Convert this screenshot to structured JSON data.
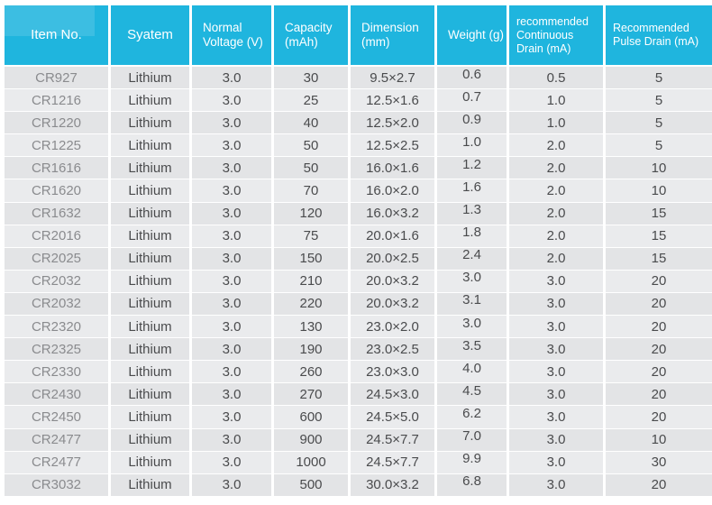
{
  "colors": {
    "header_bg": "#1fb5de",
    "header_text": "#ffffff",
    "row_odd": "#e3e4e6",
    "row_even": "#eaebed",
    "body_text": "#4a4b4d",
    "item_no_text": "#8a8b8e",
    "page_bg": "#ffffff"
  },
  "chart_data": {
    "type": "table",
    "title": "Lithium coin cell battery specifications",
    "columns": [
      {
        "id": "item_no",
        "label": "Item No."
      },
      {
        "id": "system",
        "label": "Syatem"
      },
      {
        "id": "normal_voltage_v",
        "label": "Normal Voltage (V)"
      },
      {
        "id": "capacity_mah",
        "label": "Capacity (mAh)"
      },
      {
        "id": "dimension_mm",
        "label": "Dimension (mm)"
      },
      {
        "id": "weight_g",
        "label": "Weight (g)"
      },
      {
        "id": "recommended_continuous_drain_ma",
        "label": "recommended Continuous Drain (mA)"
      },
      {
        "id": "recommended_pulse_drain_ma",
        "label": "Recommended Pulse Drain (mA)"
      }
    ],
    "rows": [
      [
        "CR927",
        "Lithium",
        "3.0",
        "30",
        "9.5×2.7",
        "0.6",
        "0.5",
        "5"
      ],
      [
        "CR1216",
        "Lithium",
        "3.0",
        "25",
        "12.5×1.6",
        "0.7",
        "1.0",
        "5"
      ],
      [
        "CR1220",
        "Lithium",
        "3.0",
        "40",
        "12.5×2.0",
        "0.9",
        "1.0",
        "5"
      ],
      [
        "CR1225",
        "Lithium",
        "3.0",
        "50",
        "12.5×2.5",
        "1.0",
        "2.0",
        "5"
      ],
      [
        "CR1616",
        "Lithium",
        "3.0",
        "50",
        "16.0×1.6",
        "1.2",
        "2.0",
        "10"
      ],
      [
        "CR1620",
        "Lithium",
        "3.0",
        "70",
        "16.0×2.0",
        "1.6",
        "2.0",
        "10"
      ],
      [
        "CR1632",
        "Lithium",
        "3.0",
        "120",
        "16.0×3.2",
        "1.3",
        "2.0",
        "15"
      ],
      [
        "CR2016",
        "Lithium",
        "3.0",
        "75",
        "20.0×1.6",
        "1.8",
        "2.0",
        "15"
      ],
      [
        "CR2025",
        "Lithium",
        "3.0",
        "150",
        "20.0×2.5",
        "2.4",
        "2.0",
        "15"
      ],
      [
        "CR2032",
        "Lithium",
        "3.0",
        "210",
        "20.0×3.2",
        "3.0",
        "3.0",
        "20"
      ],
      [
        "CR2032",
        "Lithium",
        "3.0",
        "220",
        "20.0×3.2",
        "3.1",
        "3.0",
        "20"
      ],
      [
        "CR2320",
        "Lithium",
        "3.0",
        "130",
        "23.0×2.0",
        "3.0",
        "3.0",
        "20"
      ],
      [
        "CR2325",
        "Lithium",
        "3.0",
        "190",
        "23.0×2.5",
        "3.5",
        "3.0",
        "20"
      ],
      [
        "CR2330",
        "Lithium",
        "3.0",
        "260",
        "23.0×3.0",
        "4.0",
        "3.0",
        "20"
      ],
      [
        "CR2430",
        "Lithium",
        "3.0",
        "270",
        "24.5×3.0",
        "4.5",
        "3.0",
        "20"
      ],
      [
        "CR2450",
        "Lithium",
        "3.0",
        "600",
        "24.5×5.0",
        "6.2",
        "3.0",
        "20"
      ],
      [
        "CR2477",
        "Lithium",
        "3.0",
        "900",
        "24.5×7.7",
        "7.0",
        "3.0",
        "10"
      ],
      [
        "CR2477",
        "Lithium",
        "3.0",
        "1000",
        "24.5×7.7",
        "9.9",
        "3.0",
        "30"
      ],
      [
        "CR3032",
        "Lithium",
        "3.0",
        "500",
        "30.0×3.2",
        "6.8",
        "3.0",
        "20"
      ]
    ]
  }
}
